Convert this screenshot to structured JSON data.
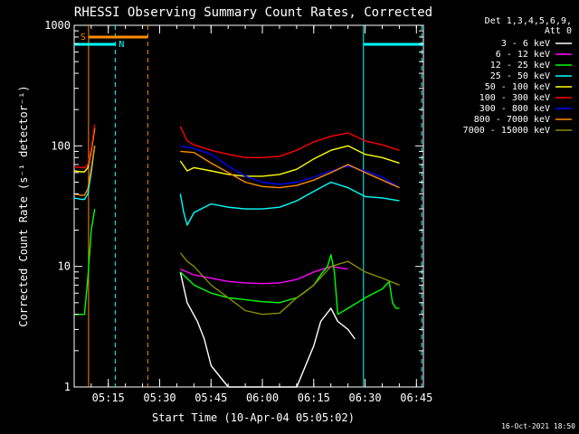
{
  "chart_data": {
    "type": "line",
    "title": "RHESSI Observing Summary Count Rates, Corrected",
    "xlabel": "Start Time (10-Apr-04 05:05:02)",
    "ylabel": "Corrected Count Rate (s⁻¹ detector⁻¹)",
    "footer": "16-Oct-2021 18:50",
    "ylim": [
      1,
      1000
    ],
    "yscale": "log",
    "xlim_minutes": [
      0,
      102
    ],
    "x_unit": "minutes after 05:05:02",
    "y_ticks": [
      "1",
      "10",
      "100",
      "1000"
    ],
    "x_ticks": [
      {
        "label": "05:15",
        "minute": 9.97
      },
      {
        "label": "05:30",
        "minute": 24.97
      },
      {
        "label": "05:45",
        "minute": 39.97
      },
      {
        "label": "06:00",
        "minute": 54.97
      },
      {
        "label": "06:15",
        "minute": 69.97
      },
      {
        "label": "06:30",
        "minute": 84.97
      },
      {
        "label": "06:45",
        "minute": 99.97
      }
    ],
    "legend": {
      "header": [
        "Det 1,3,4,5,6,9,",
        "Att 0"
      ],
      "placement": "right"
    },
    "series": [
      {
        "name": "3 - 6 keV",
        "color": "#ffffff",
        "x": [
          0,
          4,
          5,
          6,
          30,
          31,
          33,
          36,
          38,
          40,
          45,
          50,
          55,
          60,
          65,
          70,
          72,
          75,
          77,
          80,
          82,
          85,
          88,
          90
        ],
        "y": [
          0,
          0,
          0,
          0,
          0,
          9,
          5,
          3.5,
          2.5,
          1.5,
          1,
          1,
          1,
          1,
          1,
          2.2,
          3.5,
          4.5,
          3.5,
          3,
          2.5,
          0,
          0,
          0
        ]
      },
      {
        "name": "6 - 12 keV",
        "color": "#ff00ff",
        "x": [
          31,
          35,
          40,
          45,
          50,
          55,
          60,
          65,
          70,
          75,
          80
        ],
        "y": [
          9.5,
          8.5,
          8,
          7.5,
          7.3,
          7.2,
          7.3,
          7.8,
          9,
          10,
          9.5
        ]
      },
      {
        "name": "12 - 25 keV",
        "color": "#00ff00",
        "x": [
          0,
          2,
          3,
          4,
          5,
          6,
          31,
          35,
          40,
          45,
          50,
          55,
          60,
          62,
          65,
          67,
          70,
          72,
          74,
          75,
          76,
          77,
          80,
          85,
          90,
          92,
          93,
          94,
          95
        ],
        "y": [
          4,
          4,
          4,
          8,
          20,
          30,
          9,
          7,
          6,
          5.5,
          5.3,
          5.1,
          5,
          5.2,
          5.5,
          6,
          7,
          8.5,
          10,
          12.5,
          9,
          4,
          4.5,
          5.5,
          6.5,
          7.5,
          5,
          4.5,
          4.5
        ]
      },
      {
        "name": "25 - 50 keV",
        "color": "#00ffff",
        "x": [
          0,
          2,
          3,
          4,
          5,
          6,
          31,
          32,
          33,
          35,
          40,
          45,
          50,
          55,
          60,
          65,
          70,
          75,
          80,
          85,
          90,
          95
        ],
        "y": [
          37,
          36,
          36,
          40,
          60,
          100,
          40,
          28,
          22,
          28,
          33,
          31,
          30,
          30,
          31,
          35,
          42,
          50,
          45,
          38,
          37,
          35
        ]
      },
      {
        "name": "50 - 100 keV",
        "color": "#ffff00",
        "x": [
          0,
          2,
          3,
          4,
          5,
          6,
          31,
          33,
          35,
          40,
          45,
          50,
          55,
          60,
          65,
          70,
          75,
          80,
          85,
          90,
          95
        ],
        "y": [
          62,
          61,
          61,
          66,
          90,
          140,
          75,
          62,
          66,
          62,
          58,
          56,
          56,
          58,
          64,
          78,
          92,
          100,
          85,
          80,
          72
        ]
      },
      {
        "name": "100 - 300 keV",
        "color": "#ff0000",
        "x": [
          0,
          2,
          3,
          4,
          5,
          6,
          31,
          33,
          35,
          40,
          45,
          50,
          55,
          60,
          65,
          70,
          75,
          80,
          85,
          90,
          95
        ],
        "y": [
          67,
          66,
          66,
          70,
          95,
          150,
          145,
          110,
          102,
          92,
          85,
          80,
          80,
          82,
          92,
          108,
          120,
          128,
          110,
          102,
          92
        ]
      },
      {
        "name": "300 - 800 keV",
        "color": "#0000ff",
        "x": [
          31,
          35,
          40,
          45,
          50,
          55,
          60,
          65,
          70,
          75,
          80,
          85,
          90,
          95
        ],
        "y": [
          100,
          95,
          85,
          68,
          56,
          50,
          48,
          50,
          55,
          62,
          68,
          62,
          55,
          45
        ]
      },
      {
        "name": "800 - 7000 keV",
        "color": "#ff8c00",
        "x": [
          0,
          2,
          3,
          4,
          5,
          6,
          31,
          35,
          40,
          45,
          50,
          55,
          60,
          65,
          70,
          75,
          80,
          85,
          90,
          95
        ],
        "y": [
          40,
          39,
          39,
          44,
          65,
          100,
          90,
          88,
          72,
          60,
          50,
          46,
          45,
          47,
          52,
          60,
          70,
          60,
          52,
          45
        ]
      },
      {
        "name": "7000 - 15000 keV",
        "color": "#8b8b00",
        "x": [
          31,
          33,
          35,
          40,
          45,
          50,
          55,
          60,
          65,
          70,
          75,
          80,
          85,
          90,
          95
        ],
        "y": [
          13,
          11,
          10,
          7,
          5.5,
          4.3,
          4,
          4.1,
          5.5,
          7,
          10,
          11,
          9,
          8,
          7
        ]
      }
    ],
    "flags": [
      {
        "label": "S",
        "color": "#ff8c00",
        "start": 4.2,
        "end": 21.5,
        "row": "top"
      },
      {
        "label": "N",
        "color": "#00ffff",
        "start": 0,
        "end": 12,
        "row": "second"
      },
      {
        "label": "",
        "color": "#00ffff",
        "start": 84.5,
        "end": 102,
        "row": "second"
      }
    ],
    "vlines": [
      {
        "minute": 4.2,
        "color": "#ff8c00",
        "style": "solid"
      },
      {
        "minute": 12,
        "color": "#00ffff",
        "style": "dashed"
      },
      {
        "minute": 21.5,
        "color": "#ff8c00",
        "style": "dashed"
      },
      {
        "minute": 84.5,
        "color": "#00ffff",
        "style": "solid"
      },
      {
        "minute": 101.5,
        "color": "#00ffff",
        "style": "dashed"
      }
    ],
    "gaps": [
      [
        6.5,
        30.5
      ]
    ]
  }
}
